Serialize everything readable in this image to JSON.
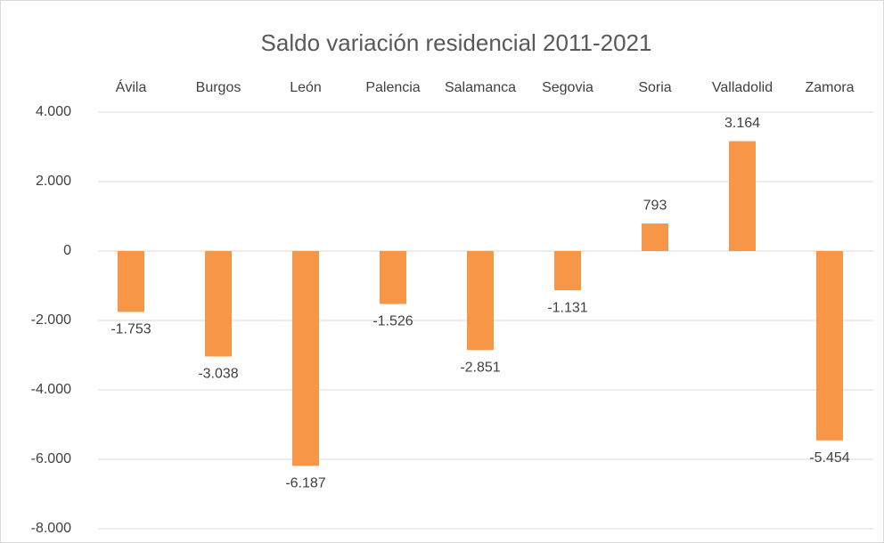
{
  "chart_data": {
    "type": "bar",
    "title": "Saldo variación residencial 2011-2021",
    "categories": [
      "Ávila",
      "Burgos",
      "León",
      "Palencia",
      "Salamanca",
      "Segovia",
      "Soria",
      "Valladolid",
      "Zamora"
    ],
    "values": [
      -1753,
      -3038,
      -6187,
      -1526,
      -2851,
      -1131,
      793,
      3164,
      -5454
    ],
    "value_labels": [
      "-1.753",
      "-3.038",
      "-6.187",
      "-1.526",
      "-2.851",
      "-1.131",
      "793",
      "3.164",
      "-5.454"
    ],
    "color": "#f79646",
    "ylim": [
      -8000,
      4000
    ],
    "yticks": [
      {
        "value": -8000,
        "label": "-8.000"
      },
      {
        "value": -6000,
        "label": "-6.000"
      },
      {
        "value": -4000,
        "label": "-4.000"
      },
      {
        "value": -2000,
        "label": "-2.000"
      },
      0,
      {
        "value": 2000,
        "label": "2.000"
      },
      {
        "value": 4000,
        "label": "4.000"
      }
    ],
    "grid": true
  }
}
